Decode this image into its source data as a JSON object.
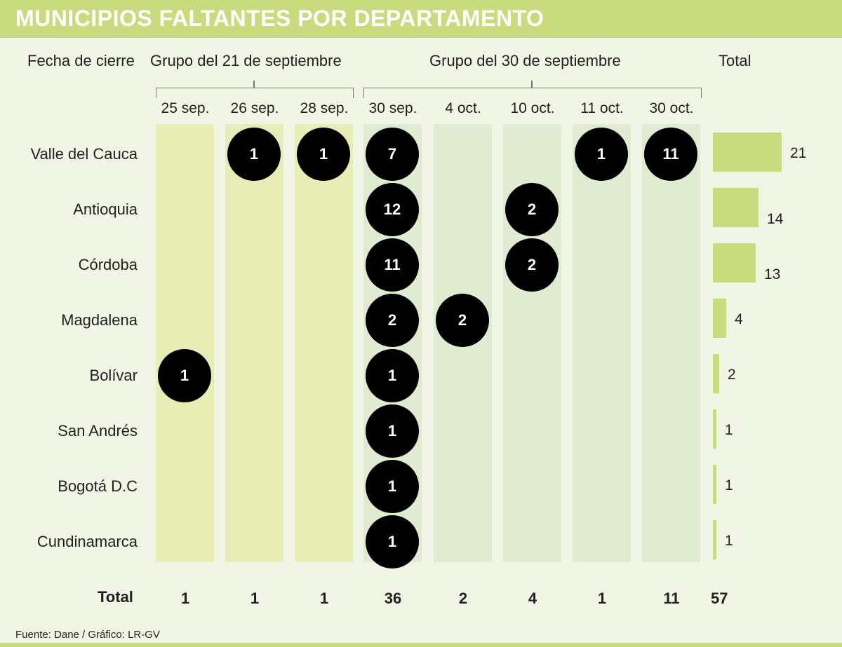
{
  "title": "MUNICIPIOS FALTANTES POR DEPARTAMENTO",
  "header": {
    "date_label": "Fecha de cierre",
    "group1": "Grupo del 21 de septiembre",
    "group2": "Grupo del 30 de septiembre",
    "total": "Total"
  },
  "footer": "Fuente: Dane / Gráfico: LR-GV",
  "total_row_label": "Total",
  "grand_total": "57",
  "colors": {
    "title_bar": "#c9db7c",
    "background": "#f1f5e6",
    "group1_column": "#e7edb4",
    "group2_column": "#e0ecd2",
    "bubble": "#000000",
    "bar": "#c9db7c"
  },
  "chart_data": {
    "type": "table",
    "columns": [
      {
        "label": "25 sep.",
        "group": "Grupo del 21 de septiembre",
        "total": "1"
      },
      {
        "label": "26 sep.",
        "group": "Grupo del 21 de septiembre",
        "total": "1"
      },
      {
        "label": "28 sep.",
        "group": "Grupo del 21 de septiembre",
        "total": "1"
      },
      {
        "label": "30 sep.",
        "group": "Grupo del 30 de septiembre",
        "total": "36"
      },
      {
        "label": "4 oct.",
        "group": "Grupo del 30 de septiembre",
        "total": "2"
      },
      {
        "label": "10 oct.",
        "group": "Grupo del 30 de septiembre",
        "total": "4"
      },
      {
        "label": "11 oct.",
        "group": "Grupo del 30 de septiembre",
        "total": "1"
      },
      {
        "label": "30 oct.",
        "group": "Grupo del 30 de septiembre",
        "total": "11"
      }
    ],
    "rows": [
      {
        "name": "Valle del Cauca",
        "values": [
          null,
          1,
          1,
          7,
          null,
          null,
          1,
          11
        ],
        "total": 21
      },
      {
        "name": "Antioquia",
        "values": [
          null,
          null,
          null,
          12,
          null,
          2,
          null,
          null
        ],
        "total": 14
      },
      {
        "name": "Córdoba",
        "values": [
          null,
          null,
          null,
          11,
          null,
          2,
          null,
          null
        ],
        "total": 13
      },
      {
        "name": "Magdalena",
        "values": [
          null,
          null,
          null,
          2,
          2,
          null,
          null,
          null
        ],
        "total": 4
      },
      {
        "name": "Bolívar",
        "values": [
          1,
          null,
          null,
          1,
          null,
          null,
          null,
          null
        ],
        "total": 2
      },
      {
        "name": "San Andrés",
        "values": [
          null,
          null,
          null,
          1,
          null,
          null,
          null,
          null
        ],
        "total": 1
      },
      {
        "name": "Bogotá D.C",
        "values": [
          null,
          null,
          null,
          1,
          null,
          null,
          null,
          null
        ],
        "total": 1
      },
      {
        "name": "Cundinamarca",
        "values": [
          null,
          null,
          null,
          1,
          null,
          null,
          null,
          null
        ],
        "total": 1
      }
    ],
    "bar_max": 21
  }
}
